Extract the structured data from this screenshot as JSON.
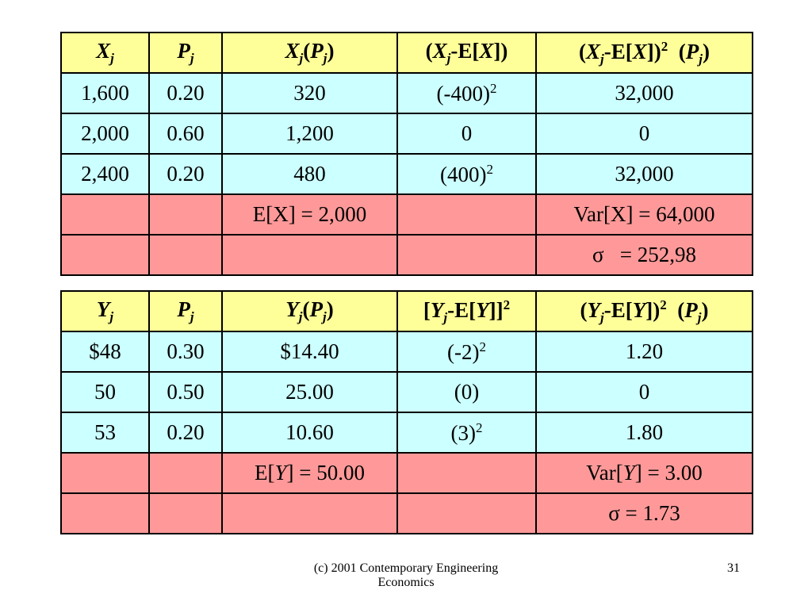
{
  "tables": [
    {
      "header": [
        [
          "X",
          "j"
        ],
        [
          "P",
          "j"
        ],
        [
          "X",
          "j",
          "(",
          "P",
          "j",
          ")"
        ],
        [
          "(",
          "X",
          "j",
          "-E[",
          "X",
          "])"
        ],
        [
          "(",
          "X",
          "j",
          "-E[",
          "X",
          "])",
          "2",
          "  (",
          "P",
          "j",
          ")"
        ]
      ],
      "rows": [
        [
          [
            "1,600"
          ],
          [
            "0.20"
          ],
          [
            "320"
          ],
          [
            "(-400)",
            "2"
          ],
          [
            "32,000"
          ]
        ],
        [
          [
            "2,000"
          ],
          [
            "0.60"
          ],
          [
            "1,200"
          ],
          [
            "0"
          ],
          [
            "0"
          ]
        ],
        [
          [
            "2,400"
          ],
          [
            "0.20"
          ],
          [
            "480"
          ],
          [
            "(400)",
            "2"
          ],
          [
            "32,000"
          ]
        ],
        [
          [],
          [],
          [
            "E[X] = 2,000"
          ],
          [],
          [
            "Var[X] = 64,000"
          ]
        ],
        [
          [],
          [],
          [],
          [],
          [
            "σ   = 252,98"
          ]
        ]
      ]
    },
    {
      "header": [
        [
          "Y",
          "j"
        ],
        [
          "P",
          "j"
        ],
        [
          "Y",
          "j",
          "(",
          "P",
          "j",
          ")"
        ],
        [
          "[",
          "Y",
          "j",
          "-E[",
          "Y",
          "]]",
          "2"
        ],
        [
          "(",
          "Y",
          "j",
          "-E[",
          "Y",
          "])",
          "2",
          "  (",
          "P",
          "j",
          ")"
        ]
      ],
      "rows": [
        [
          [
            "$48"
          ],
          [
            "0.30"
          ],
          [
            "$14.40"
          ],
          [
            "(-2)",
            "2"
          ],
          [
            "1.20"
          ]
        ],
        [
          [
            "50"
          ],
          [
            "0.50"
          ],
          [
            "25.00"
          ],
          [
            "(0)"
          ],
          [
            "0"
          ]
        ],
        [
          [
            "53"
          ],
          [
            "0.20"
          ],
          [
            "10.60"
          ],
          [
            "(3)",
            "2"
          ],
          [
            "1.80"
          ]
        ],
        [
          [],
          [],
          [
            "E[",
            "Y",
            "] = 50.00"
          ],
          [],
          [
            "Var[",
            "Y",
            "] = 3.00"
          ]
        ],
        [
          [],
          [],
          [],
          [],
          [
            "σ = 1.73"
          ]
        ]
      ]
    }
  ],
  "footer": {
    "source": [
      "(c) 2001 Contemporary Engineering",
      "Economics"
    ],
    "page": "31"
  }
}
